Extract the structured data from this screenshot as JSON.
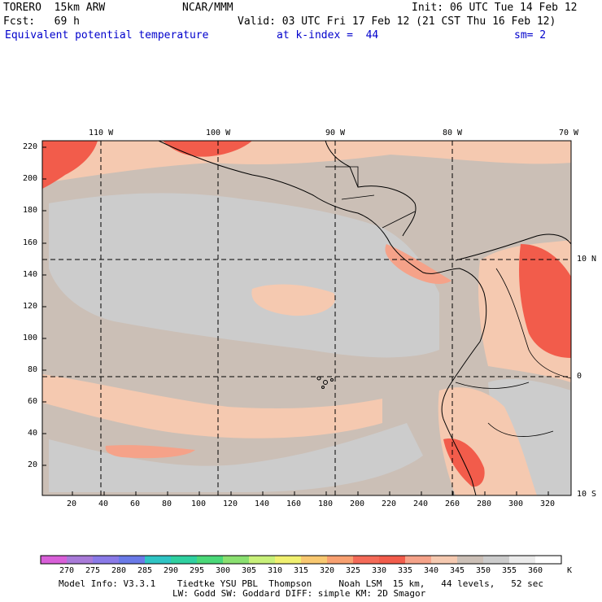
{
  "header": {
    "model": "TORERO  15km ARW",
    "center": "NCAR/MMM",
    "init": "Init: 06 UTC Tue 14 Feb 12",
    "fcst": "Fcst:   69 h",
    "valid": "Valid: 03 UTC Fri 17 Feb 12 (21 CST Thu 16 Feb 12)",
    "field": "Equivalent potential temperature",
    "level": "at k-index =  44",
    "smoothing": "sm= 2"
  },
  "map": {
    "lon_labels": [
      "110 W",
      "100 W",
      "90 W",
      "80 W",
      "70 W"
    ],
    "lat_labels": [
      "10 N",
      "0",
      "10 S"
    ],
    "y_ticks": [
      "220",
      "200",
      "180",
      "160",
      "140",
      "120",
      "100",
      "80",
      "60",
      "40",
      "20"
    ],
    "x_ticks": [
      "20",
      "40",
      "60",
      "80",
      "100",
      "120",
      "140",
      "160",
      "180",
      "200",
      "220",
      "240",
      "260",
      "280",
      "300",
      "320"
    ],
    "colors": {
      "background_field": "#cbbfb6",
      "cool_field": "#cccccc",
      "warm_field": "#f5c9b0",
      "hot_field": "#f5a289",
      "hottest_field": "#f25c4b"
    }
  },
  "colorbar": {
    "labels": [
      "270",
      "275",
      "280",
      "285",
      "290",
      "295",
      "300",
      "305",
      "310",
      "315",
      "320",
      "325",
      "330",
      "335",
      "340",
      "345",
      "350",
      "355",
      "360"
    ],
    "unit": "K",
    "colors": [
      "#d85fd8",
      "#a87ad8",
      "#8a7ae8",
      "#6a7ae8",
      "#2fc4c4",
      "#2fd0a0",
      "#4ad878",
      "#8ae070",
      "#c8f07a",
      "#f0f070",
      "#f8c870",
      "#f8a070",
      "#f46a58",
      "#f25c4b",
      "#f5a289",
      "#f5c9b0",
      "#cbbfb6",
      "#cccccc",
      "#ebebeb",
      "#ffffff"
    ]
  },
  "footer": {
    "line1": "Model Info: V3.3.1    Tiedtke YSU PBL  Thompson     Noah LSM  15 km,   44 levels,   52 sec",
    "line2": "LW: Godd SW: Goddard DIFF: simple KM: 2D Smagor"
  }
}
